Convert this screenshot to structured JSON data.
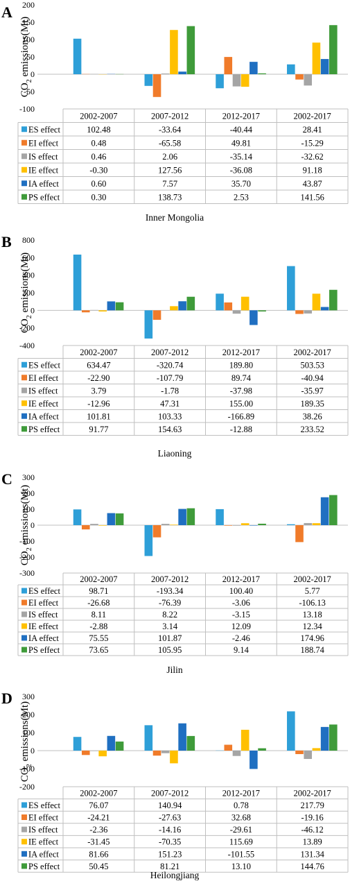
{
  "colors": {
    "ES effect": "#2e9fd8",
    "EI effect": "#f07b2a",
    "IS effect": "#a5a5a5",
    "IE effect": "#ffc000",
    "IA effect": "#1f6fc1",
    "PS effect": "#3f9b3a"
  },
  "chart_data": [
    {
      "type": "bar",
      "panel_label": "A",
      "caption": "Inner Mongolia",
      "ylabel": "CO2 emissions(Mt)",
      "ylim": [
        -100,
        200
      ],
      "yticks": [
        -100,
        -50,
        0,
        50,
        100,
        150,
        200
      ],
      "categories": [
        "2002-2007",
        "2007-2012",
        "2012-2017",
        "2002-2017"
      ],
      "series": [
        {
          "name": "ES effect",
          "values": [
            102.48,
            -33.64,
            -40.44,
            28.41
          ],
          "labels": [
            "102.48",
            "-33.64",
            "-40.44",
            "28.41"
          ]
        },
        {
          "name": "EI effect",
          "values": [
            0.48,
            -65.58,
            49.81,
            -15.29
          ],
          "labels": [
            "0.48",
            "-65.58",
            "49.81",
            "-15.29"
          ]
        },
        {
          "name": "IS effect",
          "values": [
            0.46,
            2.06,
            -35.14,
            -32.62
          ],
          "labels": [
            "0.46",
            "2.06",
            "-35.14",
            "-32.62"
          ]
        },
        {
          "name": "IE effect",
          "values": [
            -0.3,
            127.56,
            -36.08,
            91.18
          ],
          "labels": [
            "-0.30",
            "127.56",
            "-36.08",
            "91.18"
          ]
        },
        {
          "name": "IA effect",
          "values": [
            0.6,
            7.57,
            35.7,
            43.87
          ],
          "labels": [
            "0.60",
            "7.57",
            "35.70",
            "43.87"
          ]
        },
        {
          "name": "PS effect",
          "values": [
            0.3,
            138.73,
            2.53,
            141.56
          ],
          "labels": [
            "0.30",
            "138.73",
            "2.53",
            "141.56"
          ]
        }
      ]
    },
    {
      "type": "bar",
      "panel_label": "B",
      "caption": "Liaoning",
      "ylabel": "CO2 emissions(Mt)",
      "ylim": [
        -400,
        800
      ],
      "yticks": [
        -400,
        -200,
        0,
        200,
        400,
        600,
        800
      ],
      "categories": [
        "2002-2007",
        "2007-2012",
        "2012-2017",
        "2002-2017"
      ],
      "series": [
        {
          "name": "ES effect",
          "values": [
            634.47,
            -320.74,
            189.8,
            503.53
          ],
          "labels": [
            "634.47",
            "-320.74",
            "189.80",
            "503.53"
          ]
        },
        {
          "name": "EI effect",
          "values": [
            -22.9,
            -107.79,
            89.74,
            -40.94
          ],
          "labels": [
            "-22.90",
            "-107.79",
            "89.74",
            "-40.94"
          ]
        },
        {
          "name": "IS effect",
          "values": [
            3.79,
            -1.78,
            -37.98,
            -35.97
          ],
          "labels": [
            "3.79",
            "-1.78",
            "-37.98",
            "-35.97"
          ]
        },
        {
          "name": "IE effect",
          "values": [
            -12.96,
            47.31,
            155.0,
            189.35
          ],
          "labels": [
            "-12.96",
            "47.31",
            "155.00",
            "189.35"
          ]
        },
        {
          "name": "IA effect",
          "values": [
            101.81,
            103.33,
            -166.89,
            38.26
          ],
          "labels": [
            "101.81",
            "103.33",
            "-166.89",
            "38.26"
          ]
        },
        {
          "name": "PS effect",
          "values": [
            91.77,
            154.63,
            -12.88,
            233.52
          ],
          "labels": [
            "91.77",
            "154.63",
            "-12.88",
            "233.52"
          ]
        }
      ]
    },
    {
      "type": "bar",
      "panel_label": "C",
      "caption": "Jilin",
      "ylabel": "CO2 emissions(Mt)",
      "ylim": [
        -300,
        300
      ],
      "yticks": [
        -300,
        -200,
        -100,
        0,
        100,
        200,
        300
      ],
      "categories": [
        "2002-2007",
        "2007-2012",
        "2012-2017",
        "2002-2017"
      ],
      "series": [
        {
          "name": "ES effect",
          "values": [
            98.71,
            -193.34,
            100.4,
            5.77
          ],
          "labels": [
            "98.71",
            "-193.34",
            "100.40",
            "5.77"
          ]
        },
        {
          "name": "EI effect",
          "values": [
            -26.68,
            -76.39,
            -3.06,
            -106.13
          ],
          "labels": [
            "-26.68",
            "-76.39",
            "-3.06",
            "-106.13"
          ]
        },
        {
          "name": "IS effect",
          "values": [
            8.11,
            8.22,
            -3.15,
            13.18
          ],
          "labels": [
            "8.11",
            "8.22",
            "-3.15",
            "13.18"
          ]
        },
        {
          "name": "IE effect",
          "values": [
            -2.88,
            3.14,
            12.09,
            12.34
          ],
          "labels": [
            "-2.88",
            "3.14",
            "12.09",
            "12.34"
          ]
        },
        {
          "name": "IA effect",
          "values": [
            75.55,
            101.87,
            -2.46,
            174.96
          ],
          "labels": [
            "75.55",
            "101.87",
            "-2.46",
            "174.96"
          ]
        },
        {
          "name": "PS effect",
          "values": [
            73.65,
            105.95,
            9.14,
            188.74
          ],
          "labels": [
            "73.65",
            "105.95",
            "9.14",
            "188.74"
          ]
        }
      ]
    },
    {
      "type": "bar",
      "panel_label": "D",
      "caption": "Heilongjiang",
      "ylabel": "CO2 emissions(Mt)",
      "ylim": [
        -200,
        300
      ],
      "yticks": [
        -200,
        -100,
        0,
        100,
        200,
        300
      ],
      "categories": [
        "2002-2007",
        "2007-2012",
        "2012-2017",
        "2002-2017"
      ],
      "series": [
        {
          "name": "ES effect",
          "values": [
            76.07,
            140.94,
            0.78,
            217.79
          ],
          "labels": [
            "76.07",
            "140.94",
            "0.78",
            "217.79"
          ]
        },
        {
          "name": "EI effect",
          "values": [
            -24.21,
            -27.63,
            32.68,
            -19.16
          ],
          "labels": [
            "-24.21",
            "-27.63",
            "32.68",
            "-19.16"
          ]
        },
        {
          "name": "IS effect",
          "values": [
            -2.36,
            -14.16,
            -29.61,
            -46.12
          ],
          "labels": [
            "-2.36",
            "-14.16",
            "-29.61",
            "-46.12"
          ]
        },
        {
          "name": "IE effect",
          "values": [
            -31.45,
            -70.35,
            115.69,
            13.89
          ],
          "labels": [
            "-31.45",
            "-70.35",
            "115.69",
            "13.89"
          ]
        },
        {
          "name": "IA effect",
          "values": [
            81.66,
            151.23,
            -101.55,
            131.34
          ],
          "labels": [
            "81.66",
            "151.23",
            "-101.55",
            "131.34"
          ]
        },
        {
          "name": "PS effect",
          "values": [
            50.45,
            81.21,
            13.1,
            144.76
          ],
          "labels": [
            "50.45",
            "81.21",
            "13.10",
            "144.76"
          ]
        }
      ]
    }
  ]
}
